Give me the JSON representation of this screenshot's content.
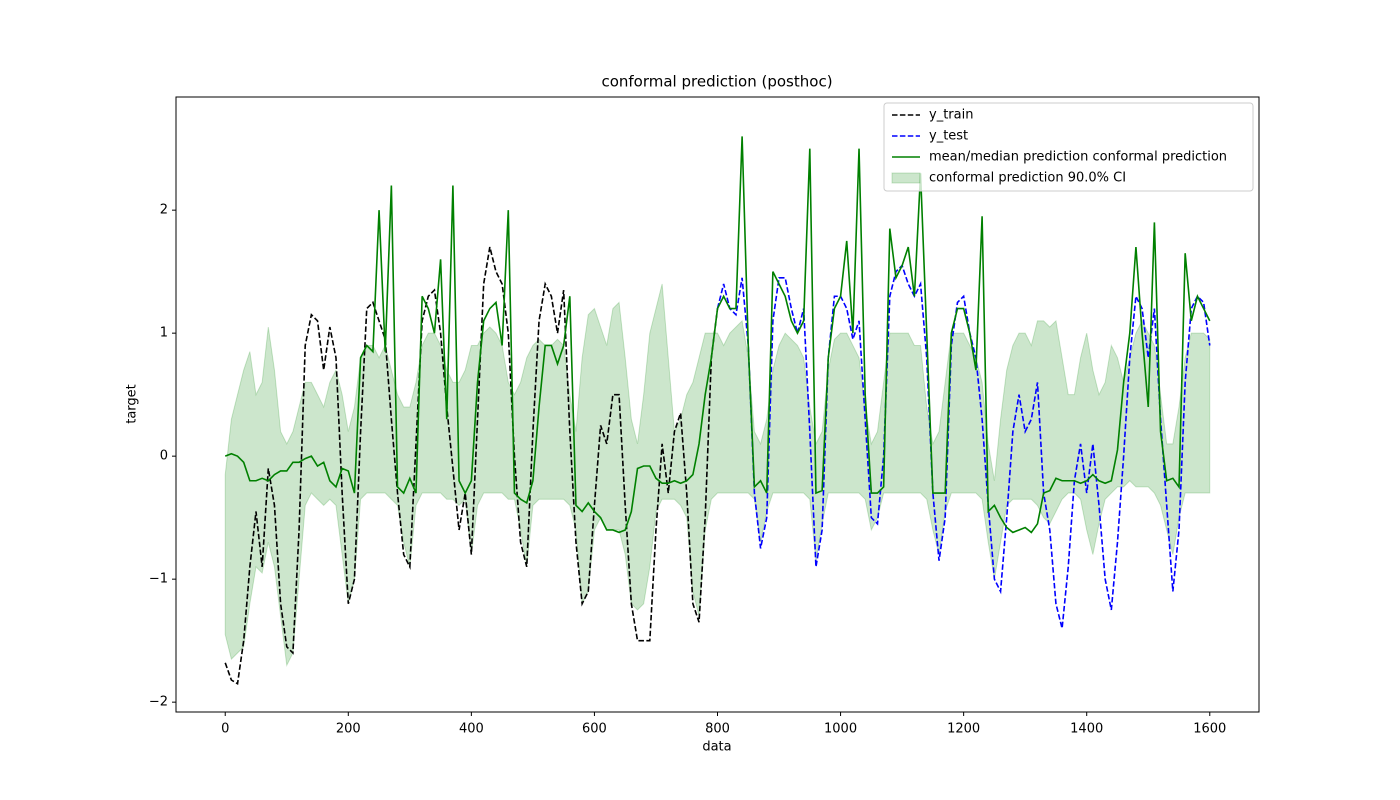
{
  "chart_data": {
    "type": "line",
    "title": "conformal prediction (posthoc)",
    "x_label": "data",
    "y_label": "target",
    "xlim": [
      -80,
      1680
    ],
    "ylim": [
      -2.08,
      2.92
    ],
    "xticks": [
      0,
      200,
      400,
      600,
      800,
      1000,
      1200,
      1400,
      1600
    ],
    "yticks": [
      {
        "value": -2,
        "label": "−2"
      },
      {
        "value": -1,
        "label": "−1"
      },
      0,
      1,
      2
    ],
    "grid": false,
    "legend": "upper right",
    "series": [
      {
        "name": "y_train",
        "color": "#000000",
        "style": "dashed",
        "x": [
          0,
          10,
          20,
          30,
          40,
          50,
          60,
          70,
          80,
          90,
          100,
          110,
          120,
          130,
          140,
          150,
          160,
          170,
          180,
          190,
          200,
          210,
          220,
          230,
          240,
          250,
          260,
          270,
          280,
          290,
          300,
          310,
          320,
          330,
          340,
          350,
          360,
          370,
          380,
          390,
          400,
          410,
          420,
          430,
          440,
          450,
          460,
          470,
          480,
          490,
          500,
          510,
          520,
          530,
          540,
          550,
          560,
          570,
          580,
          590,
          600,
          610,
          620,
          630,
          640,
          650,
          660,
          670,
          680,
          690,
          700,
          710,
          720,
          730,
          740,
          750,
          760,
          770,
          780,
          790,
          800
        ],
        "values": [
          -1.68,
          -1.82,
          -1.85,
          -1.5,
          -0.9,
          -0.45,
          -0.9,
          -0.1,
          -0.4,
          -1.2,
          -1.55,
          -1.6,
          -0.6,
          0.9,
          1.15,
          1.1,
          0.7,
          1.05,
          0.8,
          -0.3,
          -1.2,
          -1.0,
          0.2,
          1.2,
          1.25,
          1.1,
          0.95,
          0.3,
          -0.3,
          -0.8,
          -0.9,
          0.1,
          1.1,
          1.3,
          1.35,
          1.0,
          0.4,
          -0.1,
          -0.6,
          -0.3,
          -0.8,
          0.3,
          1.4,
          1.7,
          1.5,
          1.4,
          1.0,
          0.0,
          -0.7,
          -0.9,
          0.2,
          1.1,
          1.4,
          1.3,
          1.0,
          1.35,
          0.2,
          -0.7,
          -1.2,
          -1.1,
          -0.4,
          0.25,
          0.1,
          0.5,
          0.5,
          -0.4,
          -1.2,
          -1.5,
          -1.5,
          -1.5,
          -0.6,
          0.1,
          -0.3,
          0.2,
          0.35,
          -0.3,
          -1.2,
          -1.35,
          -0.5,
          0.8,
          1.2
        ]
      },
      {
        "name": "y_test",
        "color": "#0000ff",
        "style": "dashed",
        "x": [
          800,
          810,
          820,
          830,
          840,
          850,
          860,
          870,
          880,
          890,
          900,
          910,
          920,
          930,
          940,
          950,
          960,
          970,
          980,
          990,
          1000,
          1010,
          1020,
          1030,
          1040,
          1050,
          1060,
          1070,
          1080,
          1090,
          1100,
          1110,
          1120,
          1130,
          1140,
          1150,
          1160,
          1170,
          1180,
          1190,
          1200,
          1210,
          1220,
          1230,
          1240,
          1250,
          1260,
          1270,
          1280,
          1290,
          1300,
          1310,
          1320,
          1330,
          1340,
          1350,
          1360,
          1370,
          1380,
          1390,
          1400,
          1410,
          1420,
          1430,
          1440,
          1450,
          1460,
          1470,
          1480,
          1490,
          1500,
          1510,
          1520,
          1530,
          1540,
          1550,
          1560,
          1570,
          1580,
          1590,
          1600
        ],
        "values": [
          1.2,
          1.4,
          1.2,
          1.15,
          1.45,
          0.9,
          -0.3,
          -0.75,
          -0.5,
          1.1,
          1.45,
          1.45,
          1.2,
          1.0,
          1.2,
          0.2,
          -0.9,
          -0.6,
          0.8,
          1.3,
          1.3,
          1.2,
          0.95,
          1.1,
          0.3,
          -0.5,
          -0.55,
          0.0,
          1.3,
          1.5,
          1.55,
          1.4,
          1.3,
          1.4,
          0.8,
          -0.3,
          -0.85,
          -0.5,
          0.9,
          1.25,
          1.3,
          1.0,
          0.8,
          0.3,
          -0.4,
          -1.0,
          -1.1,
          -0.5,
          0.2,
          0.5,
          0.2,
          0.3,
          0.6,
          -0.3,
          -0.6,
          -1.2,
          -1.4,
          -0.9,
          -0.2,
          0.1,
          -0.3,
          0.1,
          -0.4,
          -1.0,
          -1.25,
          -0.7,
          0.0,
          0.8,
          1.3,
          1.2,
          0.8,
          1.2,
          0.3,
          -0.4,
          -1.1,
          -0.6,
          0.6,
          1.2,
          1.3,
          1.25,
          0.9
        ]
      },
      {
        "name": "mean/median prediction conformal prediction",
        "color": "#008000",
        "style": "solid",
        "x": [
          0,
          10,
          20,
          30,
          40,
          50,
          60,
          70,
          80,
          90,
          100,
          110,
          120,
          130,
          140,
          150,
          160,
          170,
          180,
          190,
          200,
          210,
          220,
          230,
          240,
          250,
          260,
          270,
          280,
          290,
          300,
          310,
          320,
          330,
          340,
          350,
          360,
          370,
          380,
          390,
          400,
          410,
          420,
          430,
          440,
          450,
          460,
          470,
          480,
          490,
          500,
          510,
          520,
          530,
          540,
          550,
          560,
          570,
          580,
          590,
          600,
          610,
          620,
          630,
          640,
          650,
          660,
          670,
          680,
          690,
          700,
          710,
          720,
          730,
          740,
          750,
          760,
          770,
          780,
          790,
          800,
          810,
          820,
          830,
          840,
          850,
          860,
          870,
          880,
          890,
          900,
          910,
          920,
          930,
          940,
          950,
          960,
          970,
          980,
          990,
          1000,
          1010,
          1020,
          1030,
          1040,
          1050,
          1060,
          1070,
          1080,
          1090,
          1100,
          1110,
          1120,
          1130,
          1140,
          1150,
          1160,
          1170,
          1180,
          1190,
          1200,
          1210,
          1220,
          1230,
          1240,
          1250,
          1260,
          1270,
          1280,
          1290,
          1300,
          1310,
          1320,
          1330,
          1340,
          1350,
          1360,
          1370,
          1380,
          1390,
          1400,
          1410,
          1420,
          1430,
          1440,
          1450,
          1460,
          1470,
          1480,
          1490,
          1500,
          1510,
          1520,
          1530,
          1540,
          1550,
          1560,
          1570,
          1580,
          1590,
          1600
        ],
        "values": [
          0.0,
          0.02,
          0.0,
          -0.05,
          -0.2,
          -0.2,
          -0.18,
          -0.2,
          -0.15,
          -0.12,
          -0.12,
          -0.05,
          -0.05,
          -0.02,
          0.0,
          -0.08,
          -0.05,
          -0.2,
          -0.25,
          -0.1,
          -0.12,
          -0.3,
          0.8,
          0.9,
          0.85,
          2.0,
          0.85,
          2.2,
          -0.25,
          -0.3,
          -0.18,
          -0.3,
          1.3,
          1.2,
          1.0,
          1.6,
          0.3,
          2.2,
          -0.2,
          -0.3,
          -0.2,
          0.6,
          1.1,
          1.2,
          1.25,
          0.9,
          2.0,
          -0.3,
          -0.35,
          -0.38,
          -0.2,
          0.4,
          0.9,
          0.9,
          0.75,
          0.9,
          1.3,
          -0.4,
          -0.45,
          -0.38,
          -0.45,
          -0.5,
          -0.6,
          -0.6,
          -0.62,
          -0.6,
          -0.45,
          -0.1,
          -0.08,
          -0.08,
          -0.18,
          -0.22,
          -0.22,
          -0.2,
          -0.22,
          -0.2,
          -0.15,
          0.1,
          0.5,
          0.8,
          1.2,
          1.3,
          1.2,
          1.2,
          2.6,
          0.9,
          -0.25,
          -0.2,
          -0.3,
          1.5,
          1.4,
          1.3,
          1.1,
          1.0,
          1.1,
          2.5,
          -0.3,
          -0.28,
          0.8,
          1.2,
          1.3,
          1.75,
          1.0,
          2.5,
          0.5,
          -0.3,
          -0.3,
          -0.25,
          1.85,
          1.45,
          1.55,
          1.7,
          1.3,
          2.3,
          1.0,
          -0.3,
          -0.3,
          -0.3,
          1.0,
          1.2,
          1.2,
          1.0,
          0.7,
          1.95,
          -0.45,
          -0.4,
          -0.5,
          -0.58,
          -0.62,
          -0.6,
          -0.58,
          -0.62,
          -0.55,
          -0.3,
          -0.28,
          -0.18,
          -0.2,
          -0.2,
          -0.2,
          -0.22,
          -0.2,
          -0.15,
          -0.2,
          -0.22,
          -0.2,
          0.05,
          0.6,
          1.0,
          1.7,
          1.0,
          0.4,
          1.9,
          0.2,
          -0.2,
          -0.18,
          -0.25,
          1.65,
          1.1,
          1.3,
          1.2,
          1.1
        ]
      }
    ],
    "band": {
      "name": "conformal prediction 90.0% CI",
      "color": "#008000",
      "x": [
        0,
        10,
        20,
        30,
        40,
        50,
        60,
        70,
        80,
        90,
        100,
        110,
        120,
        130,
        140,
        150,
        160,
        170,
        180,
        190,
        200,
        210,
        220,
        230,
        240,
        250,
        260,
        270,
        280,
        290,
        300,
        310,
        320,
        330,
        340,
        350,
        360,
        370,
        380,
        390,
        400,
        410,
        420,
        430,
        440,
        450,
        460,
        470,
        480,
        490,
        500,
        510,
        520,
        530,
        540,
        550,
        560,
        570,
        580,
        590,
        600,
        610,
        620,
        630,
        640,
        650,
        660,
        670,
        680,
        690,
        700,
        710,
        720,
        730,
        740,
        750,
        760,
        770,
        780,
        790,
        800,
        810,
        820,
        830,
        840,
        850,
        860,
        870,
        880,
        890,
        900,
        910,
        920,
        930,
        940,
        950,
        960,
        970,
        980,
        990,
        1000,
        1010,
        1020,
        1030,
        1040,
        1050,
        1060,
        1070,
        1080,
        1090,
        1100,
        1110,
        1120,
        1130,
        1140,
        1150,
        1160,
        1170,
        1180,
        1190,
        1200,
        1210,
        1220,
        1230,
        1240,
        1250,
        1260,
        1270,
        1280,
        1290,
        1300,
        1310,
        1320,
        1330,
        1340,
        1350,
        1360,
        1370,
        1380,
        1390,
        1400,
        1410,
        1420,
        1430,
        1440,
        1450,
        1460,
        1470,
        1480,
        1490,
        1500,
        1510,
        1520,
        1530,
        1540,
        1550,
        1560,
        1570,
        1580,
        1590,
        1600
      ],
      "upper": [
        -0.15,
        0.3,
        0.5,
        0.7,
        0.85,
        0.5,
        0.6,
        1.05,
        0.7,
        0.2,
        0.1,
        0.2,
        0.4,
        0.6,
        0.6,
        0.5,
        0.4,
        0.6,
        0.7,
        0.5,
        0.2,
        0.4,
        0.8,
        0.9,
        0.9,
        0.8,
        0.9,
        0.7,
        0.5,
        0.4,
        0.4,
        0.6,
        0.9,
        1.0,
        1.0,
        0.9,
        0.7,
        0.6,
        0.6,
        0.7,
        0.9,
        0.9,
        1.0,
        1.05,
        1.0,
        0.9,
        0.6,
        0.5,
        0.6,
        0.8,
        0.9,
        0.95,
        0.9,
        0.9,
        0.95,
        0.9,
        0.5,
        0.2,
        0.8,
        1.15,
        1.2,
        1.05,
        0.9,
        1.2,
        1.25,
        0.8,
        0.3,
        0.1,
        0.5,
        1.0,
        1.2,
        1.4,
        0.8,
        0.2,
        0.3,
        0.5,
        0.6,
        0.8,
        1.0,
        1.0,
        1.0,
        0.9,
        1.0,
        1.05,
        1.1,
        0.8,
        0.2,
        0.1,
        0.3,
        0.7,
        0.9,
        1.0,
        0.95,
        0.9,
        0.8,
        0.4,
        0.1,
        0.2,
        0.7,
        0.95,
        1.0,
        1.0,
        0.9,
        0.8,
        0.4,
        0.1,
        0.2,
        0.6,
        1.0,
        1.0,
        1.0,
        1.0,
        0.9,
        0.9,
        0.4,
        0.1,
        0.2,
        0.6,
        1.0,
        1.0,
        1.0,
        0.9,
        0.8,
        0.6,
        0.1,
        -0.2,
        0.3,
        0.7,
        0.9,
        1.0,
        1.0,
        0.9,
        1.1,
        1.1,
        1.05,
        1.1,
        0.8,
        0.5,
        0.5,
        0.8,
        1.0,
        0.7,
        0.5,
        0.6,
        0.9,
        0.8,
        0.6,
        0.8,
        1.0,
        1.1,
        1.0,
        0.9,
        0.5,
        0.1,
        0.1,
        0.4,
        0.8,
        1.0,
        1.0,
        1.0,
        0.95
      ],
      "lower": [
        -1.45,
        -1.65,
        -1.6,
        -1.55,
        -1.2,
        -0.9,
        -0.95,
        -0.7,
        -0.9,
        -1.3,
        -1.7,
        -1.6,
        -1.0,
        -0.4,
        -0.3,
        -0.35,
        -0.4,
        -0.35,
        -0.4,
        -0.8,
        -1.2,
        -1.0,
        -0.35,
        -0.3,
        -0.3,
        -0.3,
        -0.3,
        -0.35,
        -0.4,
        -0.7,
        -0.9,
        -0.4,
        -0.3,
        -0.3,
        -0.3,
        -0.3,
        -0.35,
        -0.35,
        -0.4,
        -0.35,
        -0.8,
        -0.4,
        -0.3,
        -0.3,
        -0.3,
        -0.3,
        -0.35,
        -0.35,
        -0.6,
        -0.9,
        -0.4,
        -0.35,
        -0.35,
        -0.35,
        -0.35,
        -0.35,
        -0.4,
        -0.6,
        -1.2,
        -1.1,
        -0.6,
        -0.5,
        -0.6,
        -0.6,
        -0.6,
        -0.8,
        -1.2,
        -1.25,
        -1.2,
        -0.9,
        -0.45,
        -0.35,
        -0.35,
        -0.35,
        -0.4,
        -0.5,
        -1.1,
        -1.3,
        -0.6,
        -0.35,
        -0.3,
        -0.3,
        -0.3,
        -0.3,
        -0.3,
        -0.3,
        -0.35,
        -0.7,
        -0.45,
        -0.3,
        -0.3,
        -0.3,
        -0.3,
        -0.3,
        -0.3,
        -0.35,
        -0.85,
        -0.55,
        -0.3,
        -0.3,
        -0.3,
        -0.3,
        -0.3,
        -0.3,
        -0.35,
        -0.6,
        -0.5,
        -0.3,
        -0.3,
        -0.3,
        -0.3,
        -0.3,
        -0.3,
        -0.3,
        -0.35,
        -0.6,
        -0.8,
        -0.45,
        -0.3,
        -0.3,
        -0.3,
        -0.3,
        -0.3,
        -0.35,
        -0.7,
        -1.0,
        -0.7,
        -0.4,
        -0.35,
        -0.35,
        -0.35,
        -0.35,
        -0.4,
        -0.5,
        -0.55,
        -0.45,
        -0.35,
        -0.3,
        -0.3,
        -0.35,
        -0.6,
        -0.8,
        -0.55,
        -0.35,
        -0.3,
        -0.25,
        -0.25,
        -0.2,
        -0.25,
        -0.25,
        -0.25,
        -0.3,
        -0.4,
        -0.6,
        -0.8,
        -0.5,
        -0.3,
        -0.3,
        -0.3,
        -0.3,
        -0.3
      ]
    }
  }
}
